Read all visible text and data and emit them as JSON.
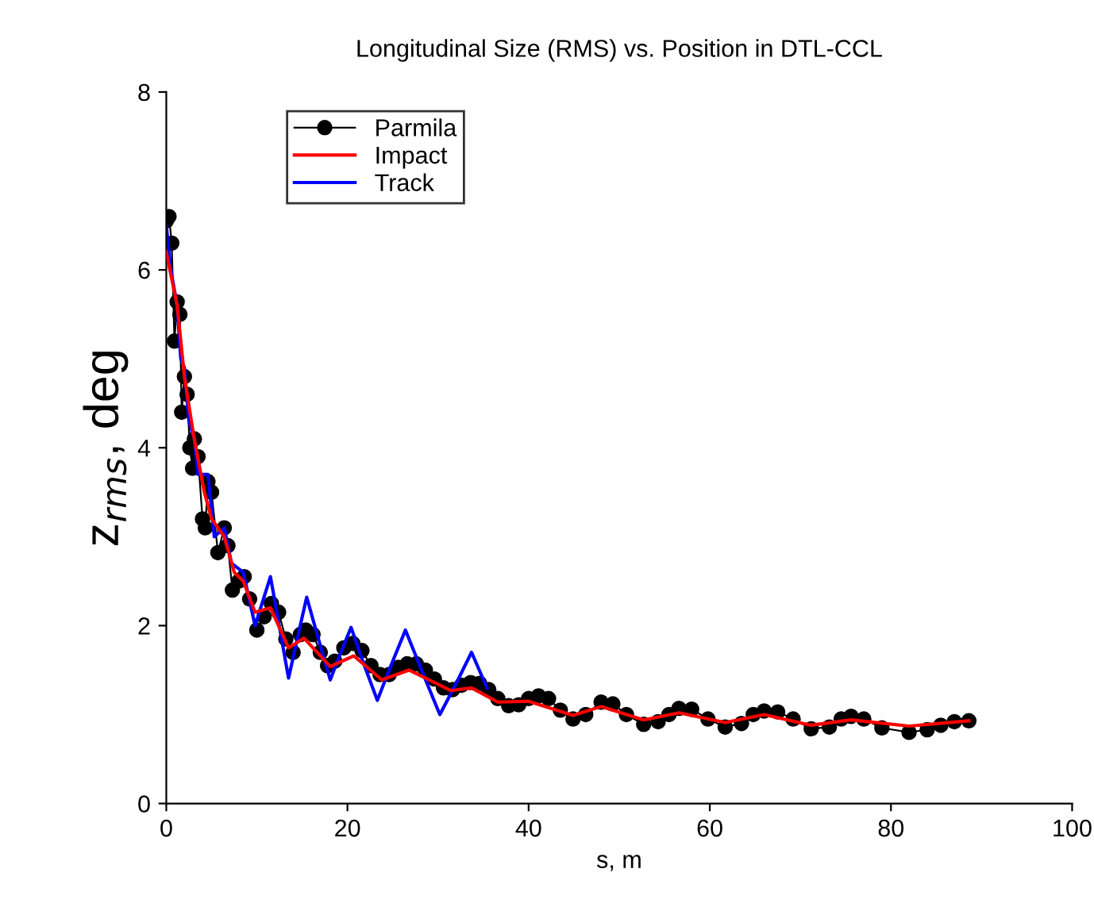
{
  "chart_data": {
    "type": "line",
    "title": "Longitudinal Size (RMS) vs. Position in DTL-CCL",
    "xlabel": "s, m",
    "ylabel": "z$_{rms}$, deg",
    "xlim": [
      0,
      100
    ],
    "xticks": [
      0,
      20,
      40,
      60,
      80,
      100
    ],
    "ylim": [
      0,
      8
    ],
    "yticks": [
      0,
      2,
      4,
      6,
      8
    ],
    "legend": "top left",
    "grid": false,
    "series": [
      {
        "name": "Parmila",
        "color": "#000000",
        "marker": "circle",
        "line_style": "solid",
        "x": [
          0,
          0.3,
          0.6,
          0.9,
          1.2,
          1.5,
          1.7,
          2,
          2.3,
          2.6,
          2.9,
          3.1,
          3.5,
          4,
          4.3,
          4.6,
          5,
          5.7,
          6.4,
          6.8,
          7.3,
          8,
          8.6,
          9.2,
          10,
          10.8,
          11.6,
          12.4,
          13.2,
          14,
          14.8,
          15.4,
          16.2,
          17,
          17.8,
          18.6,
          19.6,
          20.6,
          21.6,
          22.6,
          23.6,
          24.6,
          25.6,
          26.6,
          27.6,
          28.6,
          29.6,
          30.6,
          31.6,
          32.6,
          33.6,
          34.6,
          35.6,
          36.6,
          37.8,
          38.9,
          40,
          41.1,
          42.2,
          43.5,
          44.9,
          46.3,
          48,
          49.3,
          50.8,
          52.7,
          54.3,
          55.5,
          56.6,
          58,
          59.8,
          61.7,
          63.5,
          64.8,
          66,
          67.5,
          69.2,
          71.2,
          73.2,
          74.5,
          75.6,
          77,
          79,
          82,
          84,
          85.5,
          87,
          88.6
        ],
        "values": [
          6.55,
          6.6,
          6.3,
          5.2,
          5.64,
          5.5,
          4.4,
          4.8,
          4.6,
          4.0,
          3.77,
          4.1,
          3.9,
          3.2,
          3.1,
          3.62,
          3.5,
          2.82,
          3.1,
          2.9,
          2.4,
          2.5,
          2.55,
          2.3,
          1.95,
          2.1,
          2.25,
          2.15,
          1.85,
          1.7,
          1.9,
          1.95,
          1.9,
          1.7,
          1.55,
          1.6,
          1.75,
          1.8,
          1.72,
          1.55,
          1.45,
          1.45,
          1.53,
          1.57,
          1.57,
          1.5,
          1.4,
          1.3,
          1.28,
          1.33,
          1.36,
          1.35,
          1.28,
          1.18,
          1.1,
          1.11,
          1.18,
          1.21,
          1.18,
          1.05,
          0.95,
          1.0,
          1.14,
          1.12,
          1.0,
          0.89,
          0.92,
          1.0,
          1.07,
          1.06,
          0.95,
          0.86,
          0.9,
          1.0,
          1.04,
          1.03,
          0.95,
          0.84,
          0.86,
          0.95,
          0.98,
          0.95,
          0.85,
          0.8,
          0.83,
          0.88,
          0.92,
          0.93
        ]
      },
      {
        "name": "Impact",
        "color": "#ff0000",
        "marker": "none",
        "line_style": "solid",
        "x": [
          0,
          1.2,
          2,
          3,
          4.2,
          5,
          6.4,
          7.5,
          8.5,
          9.8,
          11.5,
          13.5,
          15.2,
          18.1,
          20.7,
          23.8,
          26.8,
          31.4,
          33.7,
          36.6,
          40,
          44.9,
          48,
          52.7,
          56.6,
          61.7,
          66,
          71.2,
          75.6,
          82,
          88.6
        ],
        "values": [
          6.2,
          5.6,
          4.8,
          4.15,
          3.5,
          3.2,
          3.0,
          2.6,
          2.5,
          2.15,
          2.2,
          1.75,
          1.86,
          1.54,
          1.66,
          1.39,
          1.5,
          1.27,
          1.3,
          1.14,
          1.15,
          0.99,
          1.09,
          0.94,
          1.02,
          0.91,
          1.0,
          0.88,
          0.94,
          0.87,
          0.93
        ]
      },
      {
        "name": "Track",
        "color": "#0000ff",
        "marker": "none",
        "line_style": "solid",
        "x": [
          0,
          0.5,
          1.2,
          1.6,
          2,
          2.5,
          3.1,
          3.5,
          4.6,
          5.3,
          6.4,
          7.2,
          8.5,
          9.8,
          11.5,
          13.5,
          14.5,
          15.5,
          16.8,
          18.1,
          19.2,
          20.4,
          21.8,
          23.3,
          24.8,
          26.4,
          28.3,
          30.2,
          32,
          33.7,
          35.4
        ],
        "values": [
          6.5,
          6.0,
          5.6,
          5.0,
          4.9,
          4.3,
          4.1,
          3.7,
          3.7,
          3.0,
          3.1,
          2.7,
          2.6,
          2.0,
          2.55,
          1.41,
          1.87,
          2.32,
          1.85,
          1.39,
          1.68,
          1.98,
          1.57,
          1.16,
          1.55,
          1.95,
          1.47,
          1.0,
          1.35,
          1.7,
          1.3
        ]
      }
    ]
  }
}
